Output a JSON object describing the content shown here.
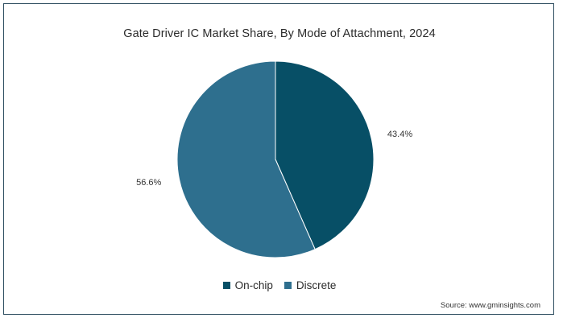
{
  "chart_data": {
    "type": "pie",
    "title": "Gate Driver IC Market Share, By Mode of Attachment, 2024",
    "slices": [
      {
        "name": "On-chip",
        "value": 43.4,
        "label": "43.4%",
        "color": "#074f66"
      },
      {
        "name": "Discrete",
        "value": 56.6,
        "label": "56.6%",
        "color": "#2e6f8e"
      }
    ],
    "legend_position": "bottom"
  },
  "source": "Source: www.gminsights.com"
}
